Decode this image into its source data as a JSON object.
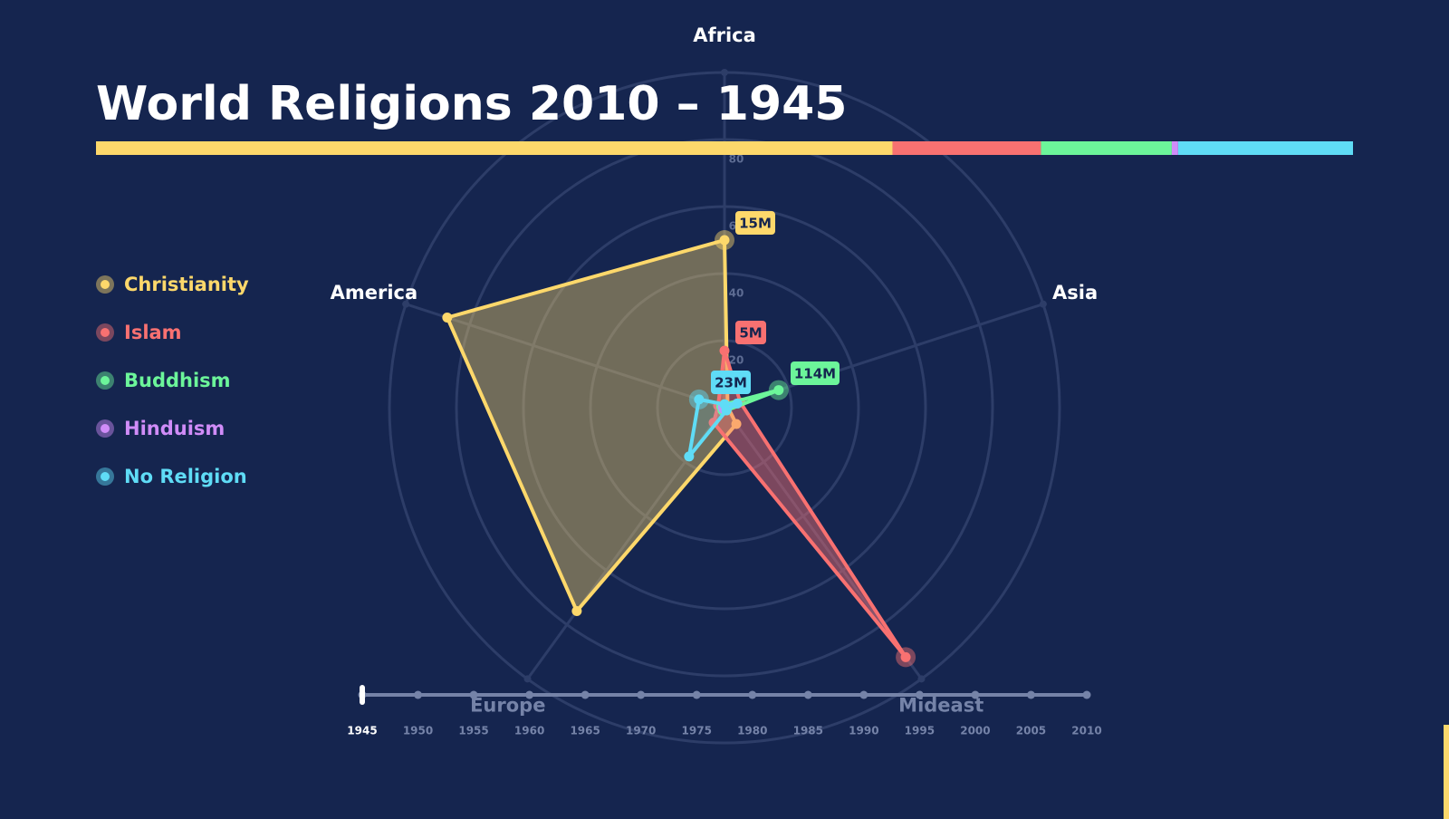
{
  "chart_data": {
    "type": "radar",
    "title": "World Religions 2010 – 1945",
    "axes": [
      "Africa",
      "Asia",
      "Mideast",
      "Europe",
      "America"
    ],
    "rlim": [
      0,
      100
    ],
    "rticks": [
      20,
      40,
      60,
      80
    ],
    "series": [
      {
        "name": "Christianity",
        "color": "#fdd86b",
        "values": [
          50,
          1,
          6,
          75,
          87
        ],
        "callout": "15M"
      },
      {
        "name": "Islam",
        "color": "#f87171",
        "values": [
          17,
          5,
          92,
          5.5,
          2
        ],
        "callout": "5M"
      },
      {
        "name": "Buddhism",
        "color": "#6cf59a",
        "values": [
          1,
          17,
          1,
          1,
          1
        ],
        "callout": "114M"
      },
      {
        "name": "Hinduism",
        "color": "#d08cf8",
        "values": [
          0.5,
          0.5,
          0.5,
          0.5,
          0.5
        ]
      },
      {
        "name": "No Religion",
        "color": "#5fdcf6",
        "values": [
          1,
          4,
          1,
          18,
          8
        ],
        "callout": "23M"
      }
    ],
    "share_bar": [
      63.3,
      11.8,
      10.4,
      0.5,
      13.9
    ],
    "timeline": {
      "xlim": [
        1945,
        2010
      ],
      "xticks": [
        1945,
        1950,
        1955,
        1960,
        1965,
        1970,
        1975,
        1980,
        1985,
        1990,
        1995,
        2000,
        2005,
        2010
      ],
      "selected": 1945
    }
  }
}
